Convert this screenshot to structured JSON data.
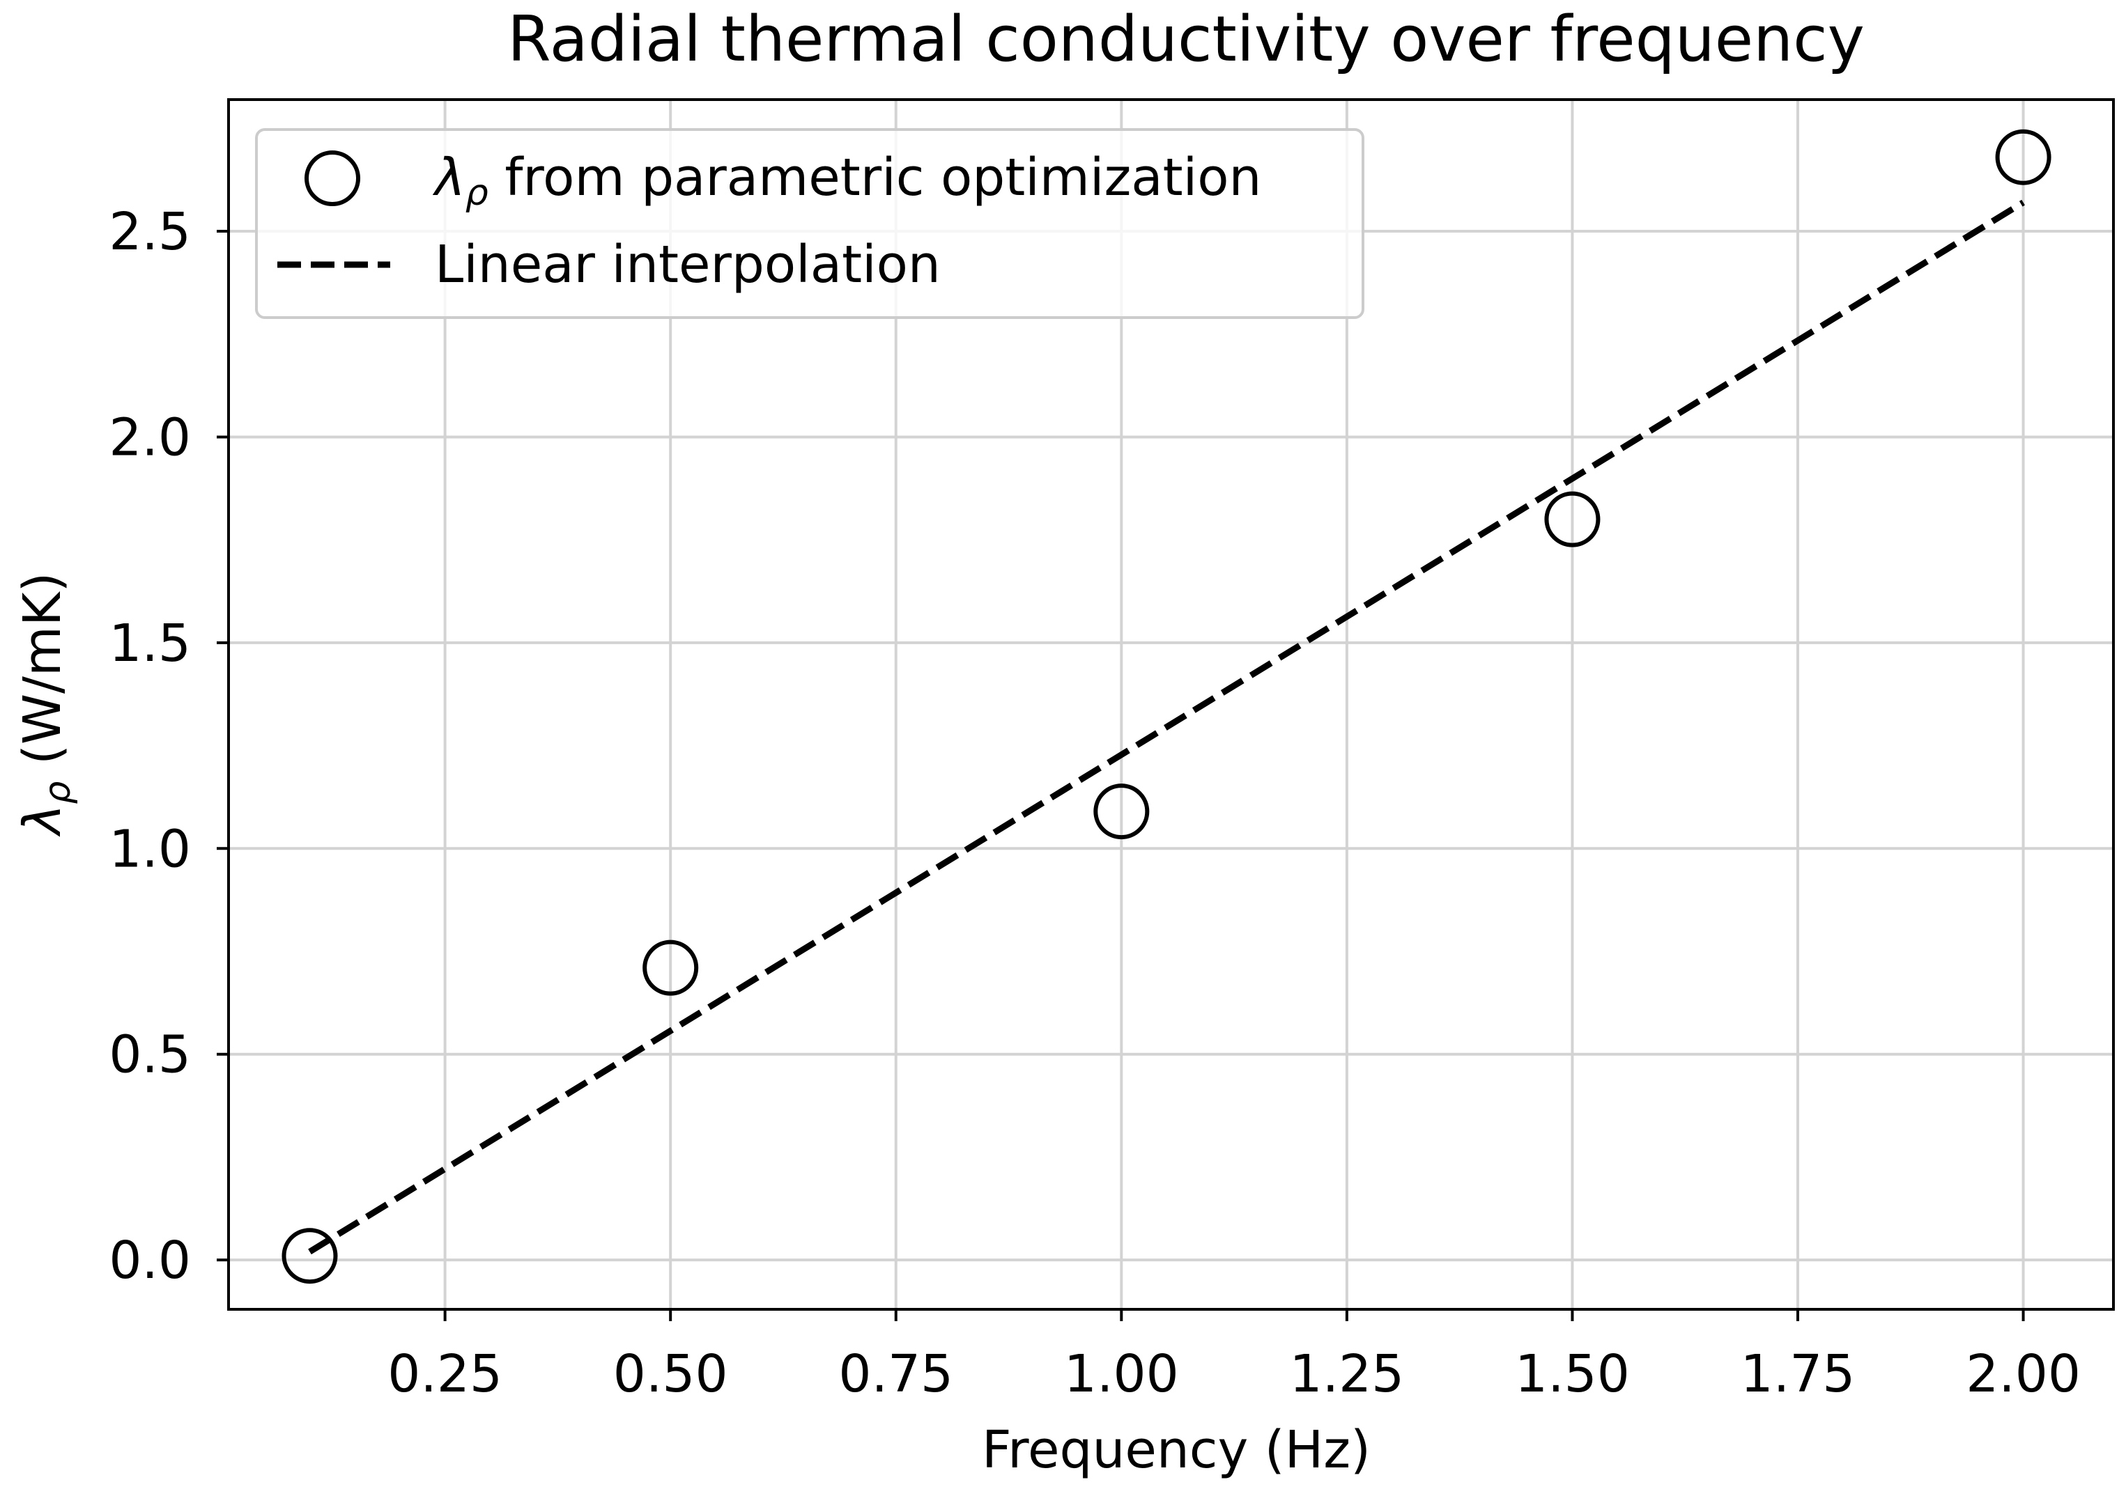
{
  "chart_data": {
    "type": "scatter",
    "title": "Radial thermal conductivity over frequency",
    "xlabel": "Frequency (Hz)",
    "ylabel": {
      "symbol": "λ",
      "subscript": "ρ",
      "rest": " (W/mK)"
    },
    "xlim": [
      0.01,
      2.1
    ],
    "ylim": [
      -0.12,
      2.82
    ],
    "xticks": [
      0.25,
      0.5,
      0.75,
      1.0,
      1.25,
      1.5,
      1.75,
      2.0
    ],
    "xtick_labels": [
      "0.25",
      "0.50",
      "0.75",
      "1.00",
      "1.25",
      "1.50",
      "1.75",
      "2.00"
    ],
    "yticks": [
      0.0,
      0.5,
      1.0,
      1.5,
      2.0,
      2.5
    ],
    "ytick_labels": [
      "0.0",
      "0.5",
      "1.0",
      "1.5",
      "2.0",
      "2.5"
    ],
    "grid": true,
    "legend_position": "upper-left",
    "series": [
      {
        "name": "λρ from parametric optimization",
        "legend": {
          "symbol": "λ",
          "subscript": "ρ",
          "rest": " from parametric optimization"
        },
        "kind": "scatter",
        "marker": "open-circle",
        "x": [
          0.1,
          0.5,
          1.0,
          1.5,
          2.0
        ],
        "y": [
          0.01,
          0.71,
          1.09,
          1.8,
          2.68
        ]
      },
      {
        "name": "Linear interpolation",
        "legend": {
          "symbol": "",
          "subscript": "",
          "rest": "Linear interpolation"
        },
        "kind": "line",
        "style": "dashed",
        "x": [
          0.1,
          2.0
        ],
        "y": [
          0.02,
          2.57
        ]
      }
    ],
    "colors": {
      "marks": "#000000",
      "grid": "#d3d3d3",
      "background": "#ffffff"
    }
  }
}
